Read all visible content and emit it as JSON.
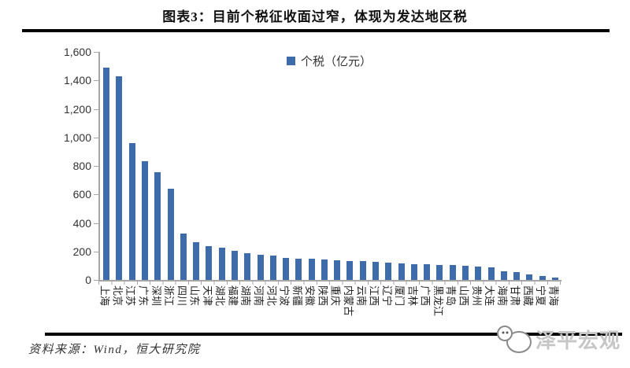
{
  "title": "图表3：目前个税征收面过窄，体现为发达地区税",
  "legend": {
    "label": "个税（亿元）"
  },
  "y_axis": {
    "ticks": [
      "1,600",
      "1,400",
      "1,200",
      "1,000",
      "800",
      "600",
      "400",
      "200",
      "0"
    ]
  },
  "footer": {
    "source": "资料来源：Wind，恒大研究院",
    "watermark": "泽平宏观"
  },
  "colors": {
    "bar": "#3e6cab",
    "axis": "#a6a6a6",
    "rule": "#000000",
    "watermark_text": "#c6c6c6"
  },
  "chart_data": {
    "type": "bar",
    "title": "图表3：目前个税征收面过窄，体现为发达地区税",
    "legend": [
      "个税（亿元）"
    ],
    "legend_position": "top-center",
    "grid": false,
    "xlabel": "",
    "ylabel": "",
    "ylim": [
      0,
      1600
    ],
    "ytick_step": 200,
    "categories": [
      "上海",
      "北京",
      "江苏",
      "广东",
      "深圳",
      "浙江",
      "四川",
      "山东",
      "天津",
      "湖北",
      "福建",
      "湖南",
      "河南",
      "河北",
      "宁波",
      "新疆",
      "安徽",
      "陕西",
      "重庆",
      "内蒙古",
      "云南",
      "江西",
      "辽宁",
      "厦门",
      "吉林",
      "广西",
      "黑龙江",
      "青岛",
      "山西",
      "贵州",
      "大连",
      "海南",
      "甘肃",
      "西藏",
      "宁夏",
      "青海"
    ],
    "series": [
      {
        "name": "个税（亿元）",
        "color": "#3e6cab",
        "values": [
          1490,
          1430,
          960,
          836,
          758,
          641,
          327,
          264,
          240,
          228,
          206,
          187,
          178,
          174,
          156,
          150,
          147,
          145,
          138,
          135,
          133,
          127,
          121,
          116,
          112,
          110,
          106,
          103,
          101,
          95,
          86,
          60,
          55,
          41,
          26,
          17
        ]
      }
    ]
  }
}
